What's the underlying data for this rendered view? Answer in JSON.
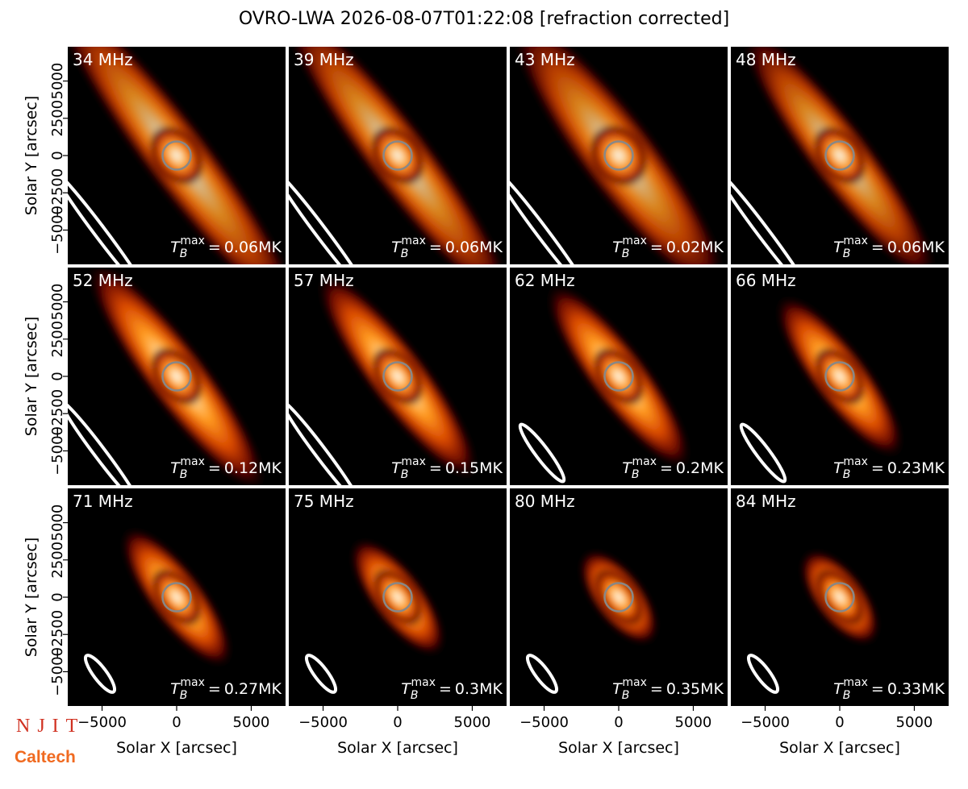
{
  "chart_data": {
    "type": "image-grid",
    "title": "OVRO-LWA 2026-08-07T01:22:08 [refraction corrected]",
    "xlabel": "Solar X [arcsec]",
    "ylabel": "Solar Y [arcsec]",
    "xlim": [
      -7300,
      7300
    ],
    "ylim": [
      -7300,
      7300
    ],
    "xticks": [
      {
        "value": -5000,
        "label": "−5000"
      },
      0,
      5000
    ],
    "yticks": [
      {
        "value": -5000,
        "label": "−5000"
      },
      {
        "value": -2500,
        "label": "−2500"
      },
      0,
      2500,
      5000
    ],
    "tb_symbol": {
      "base": "T",
      "sub": "B",
      "sup": "max",
      "equals": "="
    },
    "panels": [
      {
        "label": "34 MHz",
        "tmax": "0.06MK"
      },
      {
        "label": "39 MHz",
        "tmax": "0.06MK"
      },
      {
        "label": "43 MHz",
        "tmax": "0.02MK"
      },
      {
        "label": "48 MHz",
        "tmax": "0.06MK"
      },
      {
        "label": "52 MHz",
        "tmax": "0.12MK"
      },
      {
        "label": "57 MHz",
        "tmax": "0.15MK"
      },
      {
        "label": "62 MHz",
        "tmax": "0.2MK"
      },
      {
        "label": "66 MHz",
        "tmax": "0.23MK"
      },
      {
        "label": "71 MHz",
        "tmax": "0.27MK"
      },
      {
        "label": "75 MHz",
        "tmax": "0.3MK"
      },
      {
        "label": "80 MHz",
        "tmax": "0.35MK"
      },
      {
        "label": "84 MHz",
        "tmax": "0.33MK"
      }
    ],
    "logos": [
      "NJIT",
      "Caltech"
    ]
  }
}
